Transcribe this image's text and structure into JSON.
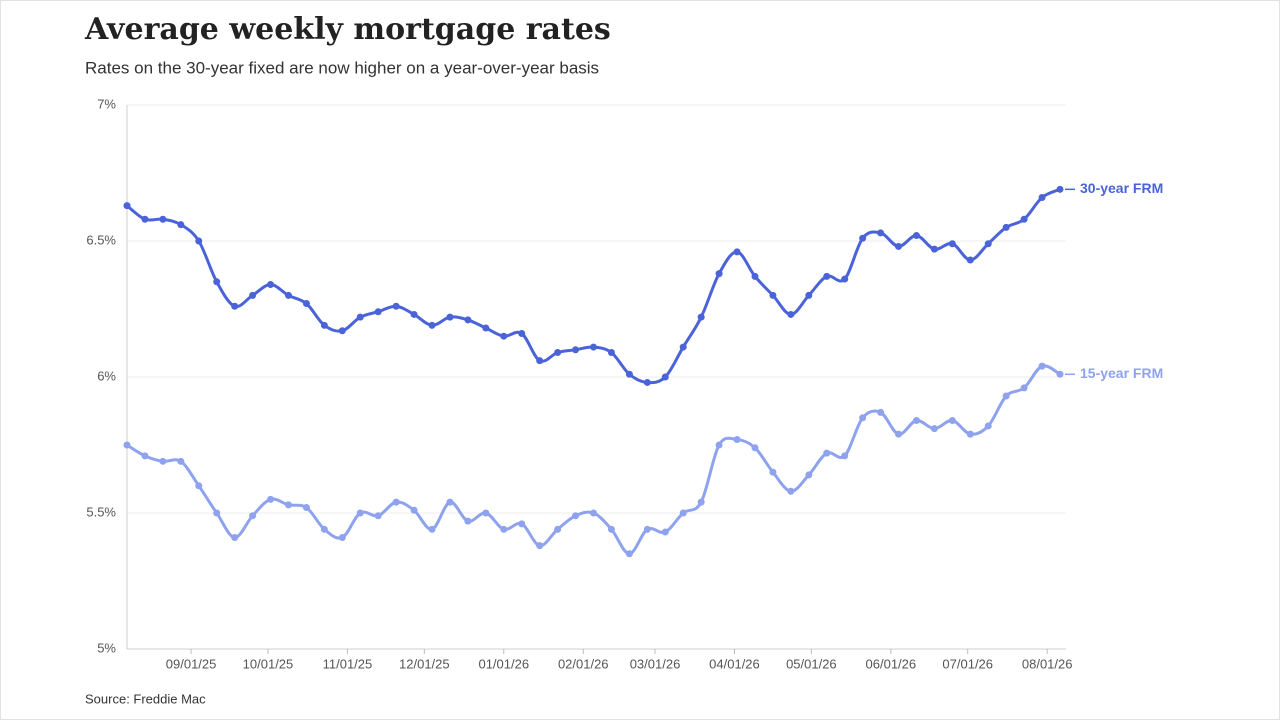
{
  "chart_data": {
    "type": "line",
    "title": "Average weekly mortgage rates",
    "subtitle": "Rates on the 30-year fixed are now higher on a year-over-year basis",
    "source": "Source: Freddie Mac",
    "x": [
      "2025-08-07",
      "2025-08-14",
      "2025-08-21",
      "2025-08-28",
      "2025-09-04",
      "2025-09-11",
      "2025-09-18",
      "2025-09-25",
      "2025-10-02",
      "2025-10-09",
      "2025-10-16",
      "2025-10-23",
      "2025-10-30",
      "2025-11-06",
      "2025-11-13",
      "2025-11-20",
      "2025-11-27",
      "2025-12-04",
      "2025-12-11",
      "2025-12-18",
      "2025-12-25",
      "2026-01-01",
      "2026-01-08",
      "2026-01-15",
      "2026-01-22",
      "2026-01-29",
      "2026-02-05",
      "2026-02-12",
      "2026-02-19",
      "2026-02-26",
      "2026-03-05",
      "2026-03-12",
      "2026-03-19",
      "2026-03-26",
      "2026-04-02",
      "2026-04-09",
      "2026-04-16",
      "2026-04-23",
      "2026-04-30",
      "2026-05-07",
      "2026-05-14",
      "2026-05-21",
      "2026-05-28",
      "2026-06-04",
      "2026-06-11",
      "2026-06-18",
      "2026-06-25",
      "2026-07-02",
      "2026-07-09",
      "2026-07-16",
      "2026-07-23",
      "2026-07-30",
      "2026-08-06"
    ],
    "series": [
      {
        "name": "30-year FRM",
        "color": "#4a63d8",
        "values": [
          6.63,
          6.58,
          6.58,
          6.56,
          6.5,
          6.35,
          6.26,
          6.3,
          6.34,
          6.3,
          6.27,
          6.19,
          6.17,
          6.22,
          6.24,
          6.26,
          6.23,
          6.19,
          6.22,
          6.21,
          6.18,
          6.15,
          6.16,
          6.06,
          6.09,
          6.1,
          6.11,
          6.09,
          6.01,
          5.98,
          6.0,
          6.11,
          6.22,
          6.38,
          6.46,
          6.37,
          6.3,
          6.23,
          6.3,
          6.37,
          6.36,
          6.51,
          6.53,
          6.48,
          6.52,
          6.47,
          6.49,
          6.43,
          6.49,
          6.55,
          6.58,
          6.66,
          6.69
        ]
      },
      {
        "name": "15-year FRM",
        "color": "#8ea2ee",
        "values": [
          5.75,
          5.71,
          5.69,
          5.69,
          5.6,
          5.5,
          5.41,
          5.49,
          5.55,
          5.53,
          5.52,
          5.44,
          5.41,
          5.5,
          5.49,
          5.54,
          5.51,
          5.44,
          5.54,
          5.47,
          5.5,
          5.44,
          5.46,
          5.38,
          5.44,
          5.49,
          5.5,
          5.44,
          5.35,
          5.44,
          5.43,
          5.5,
          5.54,
          5.75,
          5.77,
          5.74,
          5.65,
          5.58,
          5.64,
          5.72,
          5.71,
          5.85,
          5.87,
          5.79,
          5.84,
          5.81,
          5.84,
          5.79,
          5.82,
          5.93,
          5.96,
          6.04,
          6.01
        ]
      }
    ],
    "xlim": [
      "2025-08-07",
      "2026-08-06"
    ],
    "xticks": [
      {
        "value": "2025-09-01",
        "label": "09/01/25"
      },
      {
        "value": "2025-10-01",
        "label": "10/01/25"
      },
      {
        "value": "2025-11-01",
        "label": "11/01/25"
      },
      {
        "value": "2025-12-01",
        "label": "12/01/25"
      },
      {
        "value": "2026-01-01",
        "label": "01/01/26"
      },
      {
        "value": "2026-02-01",
        "label": "02/01/26"
      },
      {
        "value": "2026-03-01",
        "label": "03/01/26"
      },
      {
        "value": "2026-04-01",
        "label": "04/01/26"
      },
      {
        "value": "2026-05-01",
        "label": "05/01/26"
      },
      {
        "value": "2026-06-01",
        "label": "06/01/26"
      },
      {
        "value": "2026-07-01",
        "label": "07/01/26"
      },
      {
        "value": "2026-08-01",
        "label": "08/01/26"
      }
    ],
    "ylim": [
      5,
      7
    ],
    "yticks": [
      {
        "value": 5,
        "label": "5%"
      },
      {
        "value": 5.5,
        "label": "5.5%"
      },
      {
        "value": 6,
        "label": "6%"
      },
      {
        "value": 6.5,
        "label": "6.5%"
      },
      {
        "value": 7,
        "label": "7%"
      }
    ],
    "grid": true
  }
}
